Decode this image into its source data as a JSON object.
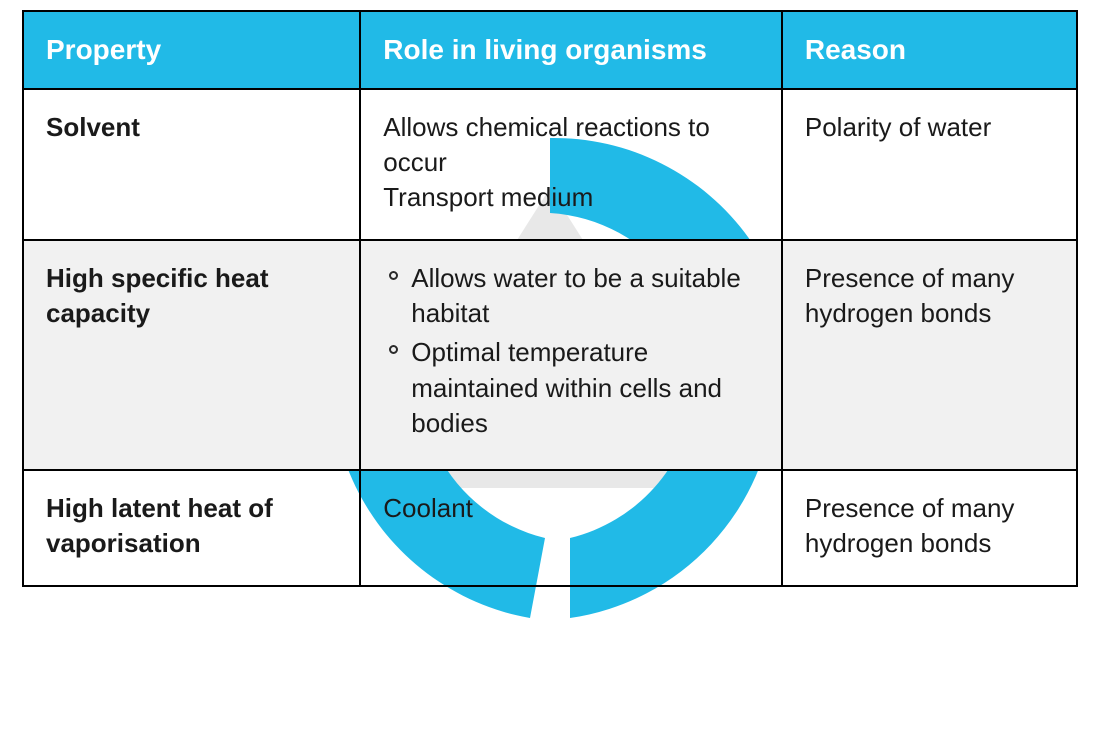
{
  "table": {
    "type": "table",
    "border_color": "#000000",
    "header": {
      "bg": "#21BAE7",
      "fg": "#ffffff",
      "fontsize": 28,
      "columns": [
        "Property",
        "Role in living organisms",
        "Reason"
      ]
    },
    "cell": {
      "fg": "#1a1a1a",
      "fontsize": 26,
      "alt_bg": "#f1f1f1",
      "column_widths_pct": [
        32,
        40,
        28
      ]
    },
    "rows": [
      {
        "alt": false,
        "property": "Solvent",
        "role_text": "Allows chemical reactions to occur\nTransport medium",
        "role_bullets": null,
        "reason": "Polarity of water"
      },
      {
        "alt": true,
        "property": "High specific heat capacity",
        "role_text": null,
        "role_bullets": [
          "Allows water to be a suitable habitat",
          "Optimal temperature maintained within cells and bodies"
        ],
        "reason": "Presence of many hydrogen bonds"
      },
      {
        "alt": false,
        "property": "High latent heat of vaporisation",
        "role_text": "Coolant",
        "role_bullets": null,
        "reason": "Presence of many hydrogen bonds"
      }
    ]
  },
  "watermark": {
    "color": "#21BAE7",
    "grey": "#e6e6e6",
    "size": 560
  }
}
